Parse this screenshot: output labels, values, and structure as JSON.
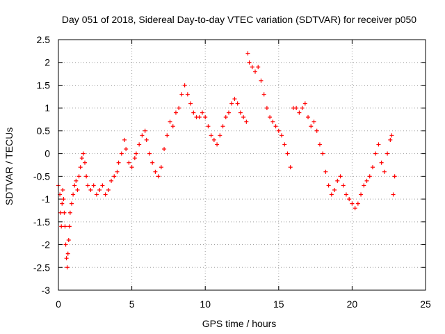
{
  "chart_data": {
    "type": "scatter",
    "title": "Day 051 of 2018, Sidereal Day-to-day VTEC variation (SDTVAR) for receiver p050",
    "xlabel": "GPS time / hours",
    "ylabel": "SDTVAR / TECUs",
    "xlim": [
      0,
      25
    ],
    "ylim": [
      -3,
      2.5
    ],
    "xticks": [
      "0",
      "5",
      "10",
      "15",
      "20",
      "25"
    ],
    "yticks": [
      "-3",
      "-2.5",
      "-2",
      "-1.5",
      "-1",
      "-0.5",
      "0",
      "0.5",
      "1",
      "1.5",
      "2",
      "2.5"
    ],
    "grid": true,
    "marker": "plus",
    "series": [
      {
        "name": "p050",
        "color": "#ff0000",
        "points": [
          [
            0.0,
            -0.7
          ],
          [
            0.1,
            -0.9
          ],
          [
            0.15,
            -1.3
          ],
          [
            0.2,
            -1.6
          ],
          [
            0.25,
            -1.1
          ],
          [
            0.3,
            -0.8
          ],
          [
            0.35,
            -1.0
          ],
          [
            0.4,
            -1.3
          ],
          [
            0.45,
            -1.6
          ],
          [
            0.5,
            -2.0
          ],
          [
            0.55,
            -2.3
          ],
          [
            0.6,
            -2.5
          ],
          [
            0.65,
            -2.2
          ],
          [
            0.7,
            -1.9
          ],
          [
            0.75,
            -1.6
          ],
          [
            0.8,
            -1.3
          ],
          [
            0.9,
            -1.1
          ],
          [
            1.0,
            -0.9
          ],
          [
            1.1,
            -0.7
          ],
          [
            1.2,
            -0.6
          ],
          [
            1.3,
            -0.8
          ],
          [
            1.4,
            -0.5
          ],
          [
            1.5,
            -0.3
          ],
          [
            1.6,
            -0.1
          ],
          [
            1.7,
            0.0
          ],
          [
            1.8,
            -0.2
          ],
          [
            1.9,
            -0.5
          ],
          [
            2.0,
            -0.7
          ],
          [
            2.2,
            -0.8
          ],
          [
            2.4,
            -0.7
          ],
          [
            2.6,
            -0.9
          ],
          [
            2.8,
            -0.8
          ],
          [
            3.0,
            -0.7
          ],
          [
            3.2,
            -0.9
          ],
          [
            3.4,
            -0.8
          ],
          [
            3.6,
            -0.6
          ],
          [
            3.8,
            -0.5
          ],
          [
            4.0,
            -0.4
          ],
          [
            4.1,
            -0.2
          ],
          [
            4.3,
            0.0
          ],
          [
            4.5,
            0.3
          ],
          [
            4.6,
            0.1
          ],
          [
            4.8,
            -0.2
          ],
          [
            5.0,
            -0.3
          ],
          [
            5.2,
            -0.1
          ],
          [
            5.3,
            0.0
          ],
          [
            5.5,
            0.2
          ],
          [
            5.7,
            0.4
          ],
          [
            5.9,
            0.5
          ],
          [
            6.0,
            0.3
          ],
          [
            6.2,
            0.0
          ],
          [
            6.4,
            -0.2
          ],
          [
            6.6,
            -0.4
          ],
          [
            6.8,
            -0.5
          ],
          [
            7.0,
            -0.3
          ],
          [
            7.2,
            0.1
          ],
          [
            7.4,
            0.4
          ],
          [
            7.6,
            0.7
          ],
          [
            7.8,
            0.6
          ],
          [
            8.0,
            0.9
          ],
          [
            8.2,
            1.0
          ],
          [
            8.4,
            1.3
          ],
          [
            8.6,
            1.5
          ],
          [
            8.8,
            1.3
          ],
          [
            9.0,
            1.1
          ],
          [
            9.2,
            0.9
          ],
          [
            9.4,
            0.8
          ],
          [
            9.6,
            0.8
          ],
          [
            9.8,
            0.9
          ],
          [
            10.0,
            0.8
          ],
          [
            10.2,
            0.6
          ],
          [
            10.4,
            0.4
          ],
          [
            10.6,
            0.3
          ],
          [
            10.8,
            0.2
          ],
          [
            11.0,
            0.4
          ],
          [
            11.2,
            0.6
          ],
          [
            11.4,
            0.8
          ],
          [
            11.6,
            0.9
          ],
          [
            11.8,
            1.1
          ],
          [
            12.0,
            1.2
          ],
          [
            12.2,
            1.1
          ],
          [
            12.4,
            0.9
          ],
          [
            12.6,
            0.8
          ],
          [
            12.8,
            0.7
          ],
          [
            12.9,
            2.2
          ],
          [
            13.0,
            2.0
          ],
          [
            13.2,
            1.9
          ],
          [
            13.4,
            1.8
          ],
          [
            13.6,
            1.9
          ],
          [
            13.8,
            1.6
          ],
          [
            14.0,
            1.3
          ],
          [
            14.2,
            1.0
          ],
          [
            14.4,
            0.8
          ],
          [
            14.6,
            0.7
          ],
          [
            14.8,
            0.6
          ],
          [
            15.0,
            0.5
          ],
          [
            15.2,
            0.4
          ],
          [
            15.4,
            0.2
          ],
          [
            15.6,
            0.0
          ],
          [
            15.8,
            -0.3
          ],
          [
            16.0,
            1.0
          ],
          [
            16.2,
            1.0
          ],
          [
            16.4,
            0.9
          ],
          [
            16.6,
            1.0
          ],
          [
            16.8,
            1.1
          ],
          [
            17.0,
            0.8
          ],
          [
            17.2,
            0.6
          ],
          [
            17.4,
            0.7
          ],
          [
            17.6,
            0.5
          ],
          [
            17.8,
            0.2
          ],
          [
            18.0,
            0.0
          ],
          [
            18.2,
            -0.4
          ],
          [
            18.4,
            -0.7
          ],
          [
            18.6,
            -0.9
          ],
          [
            18.8,
            -0.8
          ],
          [
            19.0,
            -0.6
          ],
          [
            19.2,
            -0.5
          ],
          [
            19.4,
            -0.7
          ],
          [
            19.6,
            -0.9
          ],
          [
            19.8,
            -1.0
          ],
          [
            20.0,
            -1.1
          ],
          [
            20.2,
            -1.2
          ],
          [
            20.4,
            -1.1
          ],
          [
            20.6,
            -0.9
          ],
          [
            20.8,
            -0.7
          ],
          [
            21.0,
            -0.6
          ],
          [
            21.2,
            -0.5
          ],
          [
            21.4,
            -0.3
          ],
          [
            21.6,
            0.0
          ],
          [
            21.8,
            0.2
          ],
          [
            22.0,
            -0.2
          ],
          [
            22.2,
            -0.4
          ],
          [
            22.4,
            0.0
          ],
          [
            22.6,
            0.3
          ],
          [
            22.7,
            0.4
          ],
          [
            22.8,
            -0.9
          ],
          [
            22.9,
            -0.5
          ]
        ]
      }
    ]
  }
}
